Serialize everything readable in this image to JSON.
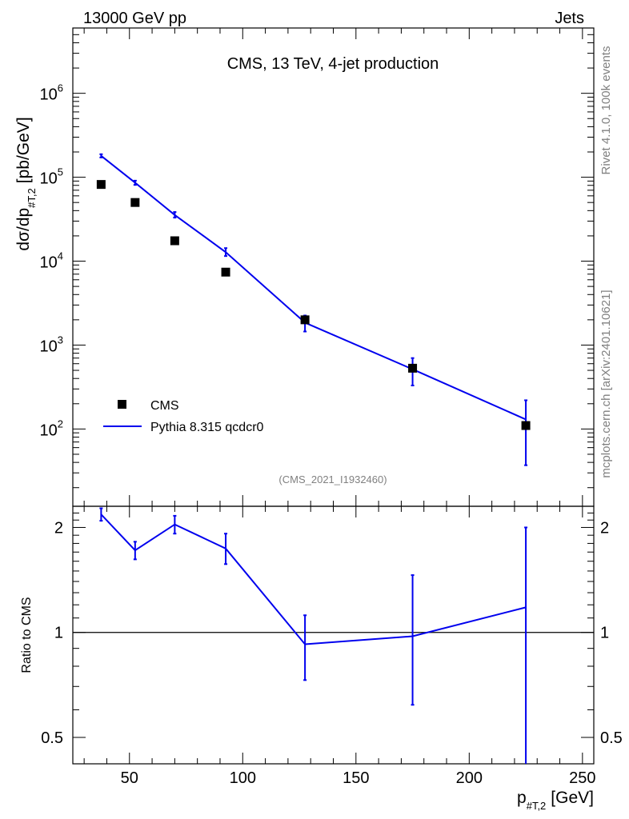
{
  "header": {
    "left": "13000 GeV pp",
    "right": "Jets"
  },
  "side_labels": {
    "rivet": "Rivet 4.1.0,  100k events",
    "site": "mcplots.cern.ch [arXiv:2401.10621]"
  },
  "colors": {
    "data": "#000000",
    "mc": "#0000ee",
    "reference": "#000000"
  },
  "chart_data": [
    {
      "type": "line",
      "title": "CMS, 13 TeV, 4-jet production",
      "watermark": "(CMS_2021_I1932460)",
      "ylabel_main": "dσ/dp",
      "ylabel_sub": "#T,2",
      "ylabel_unit": "[pb/GeV]",
      "xlabel": "",
      "xscale": "linear",
      "yscale": "log",
      "xlim": [
        25,
        255
      ],
      "ylim": [
        12,
        6000000
      ],
      "yticks": [
        {
          "value": 100,
          "base": "10",
          "exp": "2"
        },
        {
          "value": 1000,
          "base": "10",
          "exp": "3"
        },
        {
          "value": 10000,
          "base": "10",
          "exp": "4"
        },
        {
          "value": 100000,
          "base": "10",
          "exp": "5"
        },
        {
          "value": 1000000,
          "base": "10",
          "exp": "6"
        }
      ],
      "legend_position": "bottom-left",
      "legend": [
        "CMS",
        "Pythia 8.315 qcdcr0"
      ],
      "series": [
        {
          "name": "CMS",
          "style": "markers",
          "x": [
            37.5,
            52.5,
            70,
            92.5,
            127.5,
            175,
            225
          ],
          "y": [
            82000,
            50000,
            17500,
            7400,
            2000,
            530,
            110
          ]
        },
        {
          "name": "Pythia 8.315 qcdcr0",
          "style": "line",
          "x": [
            37.5,
            52.5,
            70,
            92.5,
            127.5,
            175,
            225
          ],
          "y": [
            180000,
            86000,
            35500,
            12800,
            1850,
            515,
            130
          ],
          "y_err_low": [
            172000,
            81000,
            33000,
            11500,
            1450,
            330,
            37
          ],
          "y_err_high": [
            188000,
            91000,
            38500,
            14300,
            2250,
            700,
            220
          ]
        }
      ]
    },
    {
      "type": "line",
      "title": "",
      "ylabel": "Ratio to CMS",
      "xlabel_main": "p",
      "xlabel_sub": "#T,2",
      "xlabel_unit": "[GeV]",
      "xscale": "linear",
      "yscale": "log",
      "xlim": [
        25,
        255
      ],
      "ylim": [
        0.42,
        2.3
      ],
      "xticks": [
        50,
        100,
        150,
        200,
        250
      ],
      "ytick_labels": [
        "0.5",
        "1",
        "2"
      ],
      "ytick_values": [
        0.5,
        1,
        2
      ],
      "reference_line": 1,
      "series": [
        {
          "name": "Pythia 8.315 qcdcr0",
          "style": "line",
          "x": [
            37.5,
            52.5,
            70,
            92.5,
            127.5,
            175,
            225
          ],
          "y": [
            2.18,
            1.72,
            2.04,
            1.74,
            0.925,
            0.975,
            1.18
          ],
          "y_err_low": [
            2.09,
            1.62,
            1.92,
            1.57,
            0.73,
            0.62,
            0.33
          ],
          "y_err_high": [
            2.27,
            1.82,
            2.16,
            1.92,
            1.12,
            1.46,
            2.0
          ]
        }
      ]
    }
  ]
}
